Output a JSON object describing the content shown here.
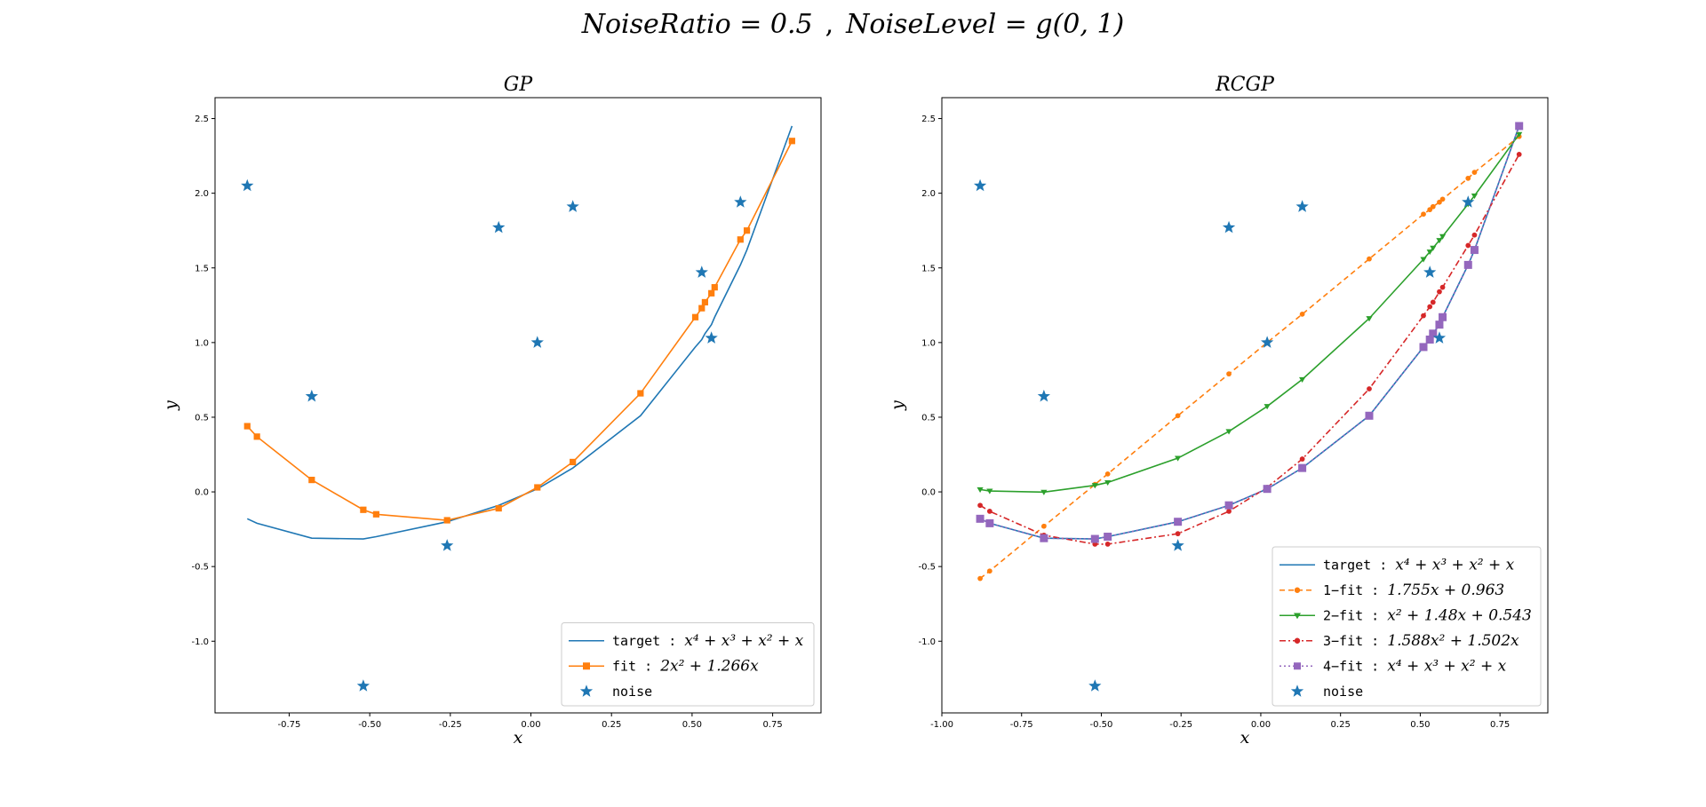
{
  "figure": {
    "title_left": "NoiseRatio = 0.5",
    "title_sep": ",",
    "title_right": "NoiseLevel = g(0, 1)"
  },
  "chart_data": [
    {
      "type": "line",
      "title": "GP",
      "xlabel": "x",
      "ylabel": "y",
      "xlim": [
        -0.98,
        0.9
      ],
      "ylim": [
        -1.48,
        2.64
      ],
      "xticks": [
        -0.75,
        -0.5,
        -0.25,
        0.0,
        0.25,
        0.5,
        0.75
      ],
      "yticks": [
        -1.0,
        -0.5,
        0.0,
        0.5,
        1.0,
        1.5,
        2.0,
        2.5
      ],
      "xtick_labels": [
        "-0.75",
        "-0.50",
        "-0.25",
        "0.00",
        "0.25",
        "0.50",
        "0.75"
      ],
      "ytick_labels": [
        "-1.0",
        "-0.5",
        "0.0",
        "0.5",
        "1.0",
        "1.5",
        "2.0",
        "2.5"
      ],
      "grid": false,
      "legend_position": "lower-right",
      "series": [
        {
          "legend_prefix": "target : ",
          "legend_formula": "x⁴ + x³ + x² + x",
          "color": "#1f77b4",
          "marker": "none",
          "dash": "solid",
          "x": [
            -0.88,
            -0.85,
            -0.68,
            -0.52,
            -0.48,
            -0.26,
            -0.1,
            0.02,
            0.13,
            0.34,
            0.51,
            0.53,
            0.54,
            0.56,
            0.57,
            0.65,
            0.67,
            0.81
          ],
          "y": [
            -0.18,
            -0.21,
            -0.31,
            -0.315,
            -0.3,
            -0.2,
            -0.09,
            0.02,
            0.16,
            0.51,
            0.97,
            1.02,
            1.06,
            1.12,
            1.17,
            1.52,
            1.62,
            2.45
          ]
        },
        {
          "legend_prefix": "fit : ",
          "legend_formula": "2x² + 1.266x",
          "color": "#ff7f0e",
          "marker": "square",
          "dash": "solid",
          "x": [
            -0.88,
            -0.85,
            -0.68,
            -0.52,
            -0.48,
            -0.26,
            -0.1,
            0.02,
            0.13,
            0.34,
            0.51,
            0.53,
            0.54,
            0.56,
            0.57,
            0.65,
            0.67,
            0.81
          ],
          "y": [
            0.44,
            0.37,
            0.08,
            -0.12,
            -0.15,
            -0.19,
            -0.11,
            0.03,
            0.2,
            0.66,
            1.17,
            1.23,
            1.27,
            1.33,
            1.37,
            1.69,
            1.75,
            2.35
          ]
        }
      ],
      "noise": {
        "legend_label": "noise",
        "color": "#1f77b4",
        "marker": "star",
        "x": [
          -0.88,
          -0.68,
          -0.52,
          -0.26,
          -0.1,
          0.02,
          0.13,
          0.53,
          0.56,
          0.65
        ],
        "y": [
          2.05,
          0.64,
          -1.3,
          -0.36,
          1.77,
          1.0,
          1.91,
          1.47,
          1.03,
          1.94
        ]
      }
    },
    {
      "type": "line",
      "title": "RCGP",
      "xlabel": "x",
      "ylabel": "y",
      "xlim": [
        -1.0,
        0.9
      ],
      "ylim": [
        -1.48,
        2.64
      ],
      "xticks": [
        -1.0,
        -0.75,
        -0.5,
        -0.25,
        0.0,
        0.25,
        0.5,
        0.75
      ],
      "yticks": [
        -1.0,
        -0.5,
        0.0,
        0.5,
        1.0,
        1.5,
        2.0,
        2.5
      ],
      "xtick_labels": [
        "-1.00",
        "-0.75",
        "-0.50",
        "-0.25",
        "0.00",
        "0.25",
        "0.50",
        "0.75"
      ],
      "ytick_labels": [
        "-1.0",
        "-0.5",
        "0.0",
        "0.5",
        "1.0",
        "1.5",
        "2.0",
        "2.5"
      ],
      "grid": false,
      "legend_position": "lower-right",
      "series": [
        {
          "legend_prefix": "target : ",
          "legend_formula": "x⁴ + x³ + x² + x",
          "color": "#1f77b4",
          "marker": "none",
          "dash": "solid",
          "x": [
            -0.88,
            -0.85,
            -0.68,
            -0.52,
            -0.48,
            -0.26,
            -0.1,
            0.02,
            0.13,
            0.34,
            0.51,
            0.53,
            0.54,
            0.56,
            0.57,
            0.65,
            0.67,
            0.81
          ],
          "y": [
            -0.18,
            -0.21,
            -0.31,
            -0.315,
            -0.3,
            -0.2,
            -0.09,
            0.02,
            0.16,
            0.51,
            0.97,
            1.02,
            1.06,
            1.12,
            1.17,
            1.52,
            1.62,
            2.45
          ]
        },
        {
          "legend_prefix": "1−fit : ",
          "legend_formula": "1.755x + 0.963",
          "color": "#ff7f0e",
          "marker": "circle",
          "dash": "dashed",
          "x": [
            -0.88,
            -0.85,
            -0.68,
            -0.52,
            -0.48,
            -0.26,
            -0.1,
            0.02,
            0.13,
            0.34,
            0.51,
            0.53,
            0.54,
            0.56,
            0.57,
            0.65,
            0.67,
            0.81
          ],
          "y": [
            -0.58,
            -0.53,
            -0.23,
            0.05,
            0.12,
            0.51,
            0.79,
            1.0,
            1.19,
            1.56,
            1.86,
            1.89,
            1.91,
            1.94,
            1.96,
            2.1,
            2.14,
            2.38
          ]
        },
        {
          "legend_prefix": "2−fit : ",
          "legend_formula": "x² + 1.48x + 0.543",
          "color": "#2ca02c",
          "marker": "triangle-down",
          "dash": "solid",
          "x": [
            -0.88,
            -0.85,
            -0.68,
            -0.52,
            -0.48,
            -0.26,
            -0.1,
            0.02,
            0.13,
            0.34,
            0.51,
            0.53,
            0.54,
            0.56,
            0.57,
            0.65,
            0.67,
            0.81
          ],
          "y": [
            0.016,
            0.006,
            -0.0016,
            0.044,
            0.063,
            0.226,
            0.405,
            0.573,
            0.753,
            1.162,
            1.558,
            1.608,
            1.634,
            1.685,
            1.711,
            1.928,
            1.983,
            2.395
          ]
        },
        {
          "legend_prefix": "3−fit : ",
          "legend_formula": "1.588x² + 1.502x",
          "color": "#d62728",
          "marker": "circle",
          "dash": "dashdot",
          "x": [
            -0.88,
            -0.85,
            -0.68,
            -0.52,
            -0.48,
            -0.26,
            -0.1,
            0.02,
            0.13,
            0.34,
            0.51,
            0.53,
            0.54,
            0.56,
            0.57,
            0.65,
            0.67,
            0.81
          ],
          "y": [
            -0.09,
            -0.13,
            -0.29,
            -0.35,
            -0.35,
            -0.28,
            -0.13,
            0.03,
            0.22,
            0.69,
            1.18,
            1.24,
            1.27,
            1.34,
            1.37,
            1.65,
            1.72,
            2.26
          ]
        },
        {
          "legend_prefix": "4−fit : ",
          "legend_formula": "x⁴ + x³ + x² + x",
          "color": "#9467bd",
          "marker": "square",
          "dash": "dotted",
          "x": [
            -0.88,
            -0.85,
            -0.68,
            -0.52,
            -0.48,
            -0.26,
            -0.1,
            0.02,
            0.13,
            0.34,
            0.51,
            0.53,
            0.54,
            0.56,
            0.57,
            0.65,
            0.67,
            0.81
          ],
          "y": [
            -0.18,
            -0.21,
            -0.31,
            -0.315,
            -0.3,
            -0.2,
            -0.09,
            0.02,
            0.16,
            0.51,
            0.97,
            1.02,
            1.06,
            1.12,
            1.17,
            1.52,
            1.62,
            2.45
          ]
        }
      ],
      "noise": {
        "legend_label": "noise",
        "color": "#1f77b4",
        "marker": "star",
        "x": [
          -0.88,
          -0.68,
          -0.52,
          -0.26,
          -0.1,
          0.02,
          0.13,
          0.53,
          0.56,
          0.65
        ],
        "y": [
          2.05,
          0.64,
          -1.3,
          -0.36,
          1.77,
          1.0,
          1.91,
          1.47,
          1.03,
          1.94
        ]
      }
    }
  ]
}
